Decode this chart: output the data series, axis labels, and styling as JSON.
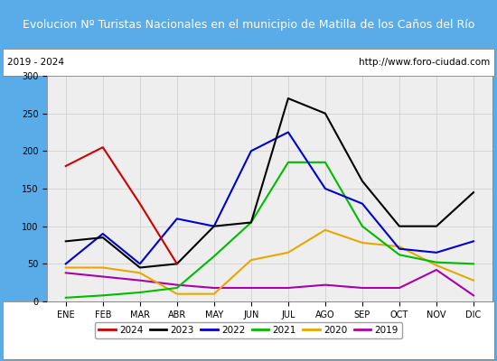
{
  "title": "Evolucion Nº Turistas Nacionales en el municipio de Matilla de los Caños del Río",
  "subtitle_left": "2019 - 2024",
  "subtitle_right": "http://www.foro-ciudad.com",
  "months": [
    "ENE",
    "FEB",
    "MAR",
    "ABR",
    "MAY",
    "JUN",
    "JUL",
    "AGO",
    "SEP",
    "OCT",
    "NOV",
    "DIC"
  ],
  "ylim": [
    0,
    300
  ],
  "yticks": [
    0,
    50,
    100,
    150,
    200,
    250,
    300
  ],
  "series": {
    "2024": {
      "color": "#cc0000",
      "data": [
        180,
        205,
        130,
        50,
        null,
        null,
        null,
        null,
        null,
        null,
        null,
        null
      ]
    },
    "2023": {
      "color": "#000000",
      "data": [
        80,
        85,
        45,
        50,
        100,
        105,
        270,
        250,
        160,
        100,
        100,
        145
      ]
    },
    "2022": {
      "color": "#0000cc",
      "data": [
        50,
        90,
        50,
        110,
        100,
        200,
        225,
        150,
        130,
        70,
        65,
        80
      ]
    },
    "2021": {
      "color": "#00bb00",
      "data": [
        5,
        8,
        12,
        18,
        60,
        105,
        185,
        185,
        100,
        62,
        52,
        50
      ]
    },
    "2020": {
      "color": "#e6a800",
      "data": [
        45,
        45,
        38,
        10,
        10,
        55,
        65,
        95,
        78,
        73,
        48,
        28
      ]
    },
    "2019": {
      "color": "#aa00aa",
      "data": [
        38,
        33,
        28,
        22,
        18,
        18,
        18,
        22,
        18,
        18,
        42,
        8
      ]
    }
  },
  "title_bg": "#5aace8",
  "title_color": "#ffffff",
  "subtitle_bg": "#ffffff",
  "plot_bg": "#eeeeee",
  "border_color": "#5aace8",
  "title_fontsize": 9,
  "subtitle_fontsize": 7.5,
  "tick_fontsize": 7,
  "legend_fontsize": 7.5
}
